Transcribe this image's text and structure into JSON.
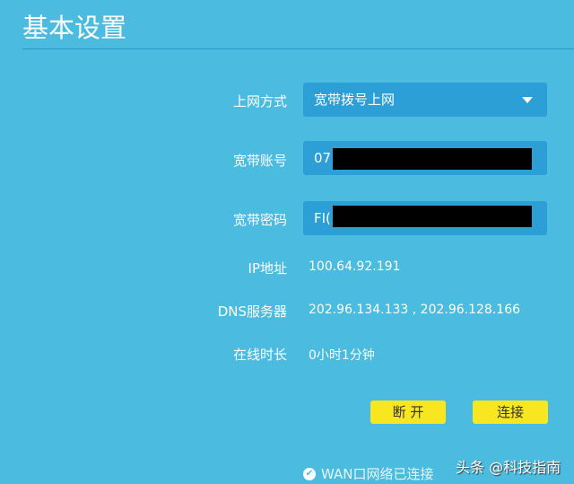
{
  "header": {
    "title": "基本设置"
  },
  "form": {
    "connection_type": {
      "label": "上网方式",
      "value": "宽带拨号上网"
    },
    "account": {
      "label": "宽带账号",
      "value": "07"
    },
    "password": {
      "label": "宽带密码",
      "value": "FI("
    },
    "ip": {
      "label": "IP地址",
      "value": "100.64.92.191"
    },
    "dns": {
      "label": "DNS服务器",
      "value": "202.96.134.133 , 202.96.128.166"
    },
    "online_time": {
      "label": "在线时长",
      "value": "0小时1分钟"
    }
  },
  "buttons": {
    "disconnect": "断 开",
    "connect": "连接"
  },
  "status": {
    "text": "WAN口网络已连接",
    "icon": "check-circle-icon"
  },
  "watermark": "头条 @科技指南",
  "colors": {
    "background": "#4bbbe0",
    "field": "#2d9fd7",
    "button": "#f7e620"
  }
}
